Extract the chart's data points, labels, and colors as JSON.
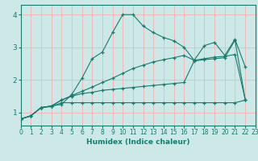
{
  "xlabel": "Humidex (Indice chaleur)",
  "xlim": [
    0,
    23
  ],
  "ylim": [
    0.6,
    4.3
  ],
  "xticks": [
    0,
    1,
    2,
    3,
    4,
    5,
    6,
    7,
    8,
    9,
    10,
    11,
    12,
    13,
    14,
    15,
    16,
    17,
    18,
    19,
    20,
    21,
    22,
    23
  ],
  "yticks": [
    1,
    2,
    3,
    4
  ],
  "bg_color": "#cce9e7",
  "grid_color": "#f2b8b8",
  "line_color": "#1a7a6e",
  "lines": [
    {
      "x": [
        0,
        1,
        2,
        3,
        4,
        5,
        6,
        7,
        8,
        9,
        10,
        11,
        12,
        13,
        14,
        15,
        16,
        17,
        18,
        19,
        20,
        21,
        22
      ],
      "y": [
        0.8,
        0.9,
        1.15,
        1.2,
        1.25,
        1.55,
        2.05,
        2.65,
        2.85,
        3.45,
        4.0,
        4.0,
        3.65,
        3.45,
        3.3,
        3.2,
        3.0,
        2.6,
        3.05,
        3.15,
        2.75,
        3.25,
        2.4
      ]
    },
    {
      "x": [
        0,
        1,
        2,
        3,
        4,
        5,
        6,
        7,
        8,
        9,
        10,
        11,
        12,
        13,
        14,
        15,
        16,
        17,
        18,
        19,
        20,
        21,
        22
      ],
      "y": [
        0.8,
        0.9,
        1.15,
        1.2,
        1.38,
        1.52,
        1.65,
        1.78,
        1.92,
        2.05,
        2.2,
        2.35,
        2.45,
        2.55,
        2.62,
        2.68,
        2.75,
        2.6,
        2.65,
        2.7,
        2.72,
        2.78,
        1.4
      ]
    },
    {
      "x": [
        0,
        1,
        2,
        3,
        4,
        5,
        6,
        7,
        8,
        9,
        10,
        11,
        12,
        13,
        14,
        15,
        16,
        17,
        18,
        19,
        20,
        21,
        22
      ],
      "y": [
        0.8,
        0.9,
        1.15,
        1.2,
        1.38,
        1.5,
        1.58,
        1.62,
        1.68,
        1.71,
        1.74,
        1.77,
        1.8,
        1.83,
        1.86,
        1.89,
        1.92,
        2.58,
        2.62,
        2.65,
        2.68,
        3.22,
        1.4
      ]
    },
    {
      "x": [
        0,
        1,
        2,
        3,
        4,
        5,
        6,
        7,
        8,
        9,
        10,
        11,
        12,
        13,
        14,
        15,
        16,
        17,
        18,
        19,
        20,
        21,
        22
      ],
      "y": [
        0.8,
        0.9,
        1.15,
        1.18,
        1.3,
        1.3,
        1.3,
        1.3,
        1.3,
        1.3,
        1.3,
        1.3,
        1.3,
        1.3,
        1.3,
        1.3,
        1.3,
        1.3,
        1.3,
        1.3,
        1.3,
        1.3,
        1.38
      ]
    }
  ]
}
